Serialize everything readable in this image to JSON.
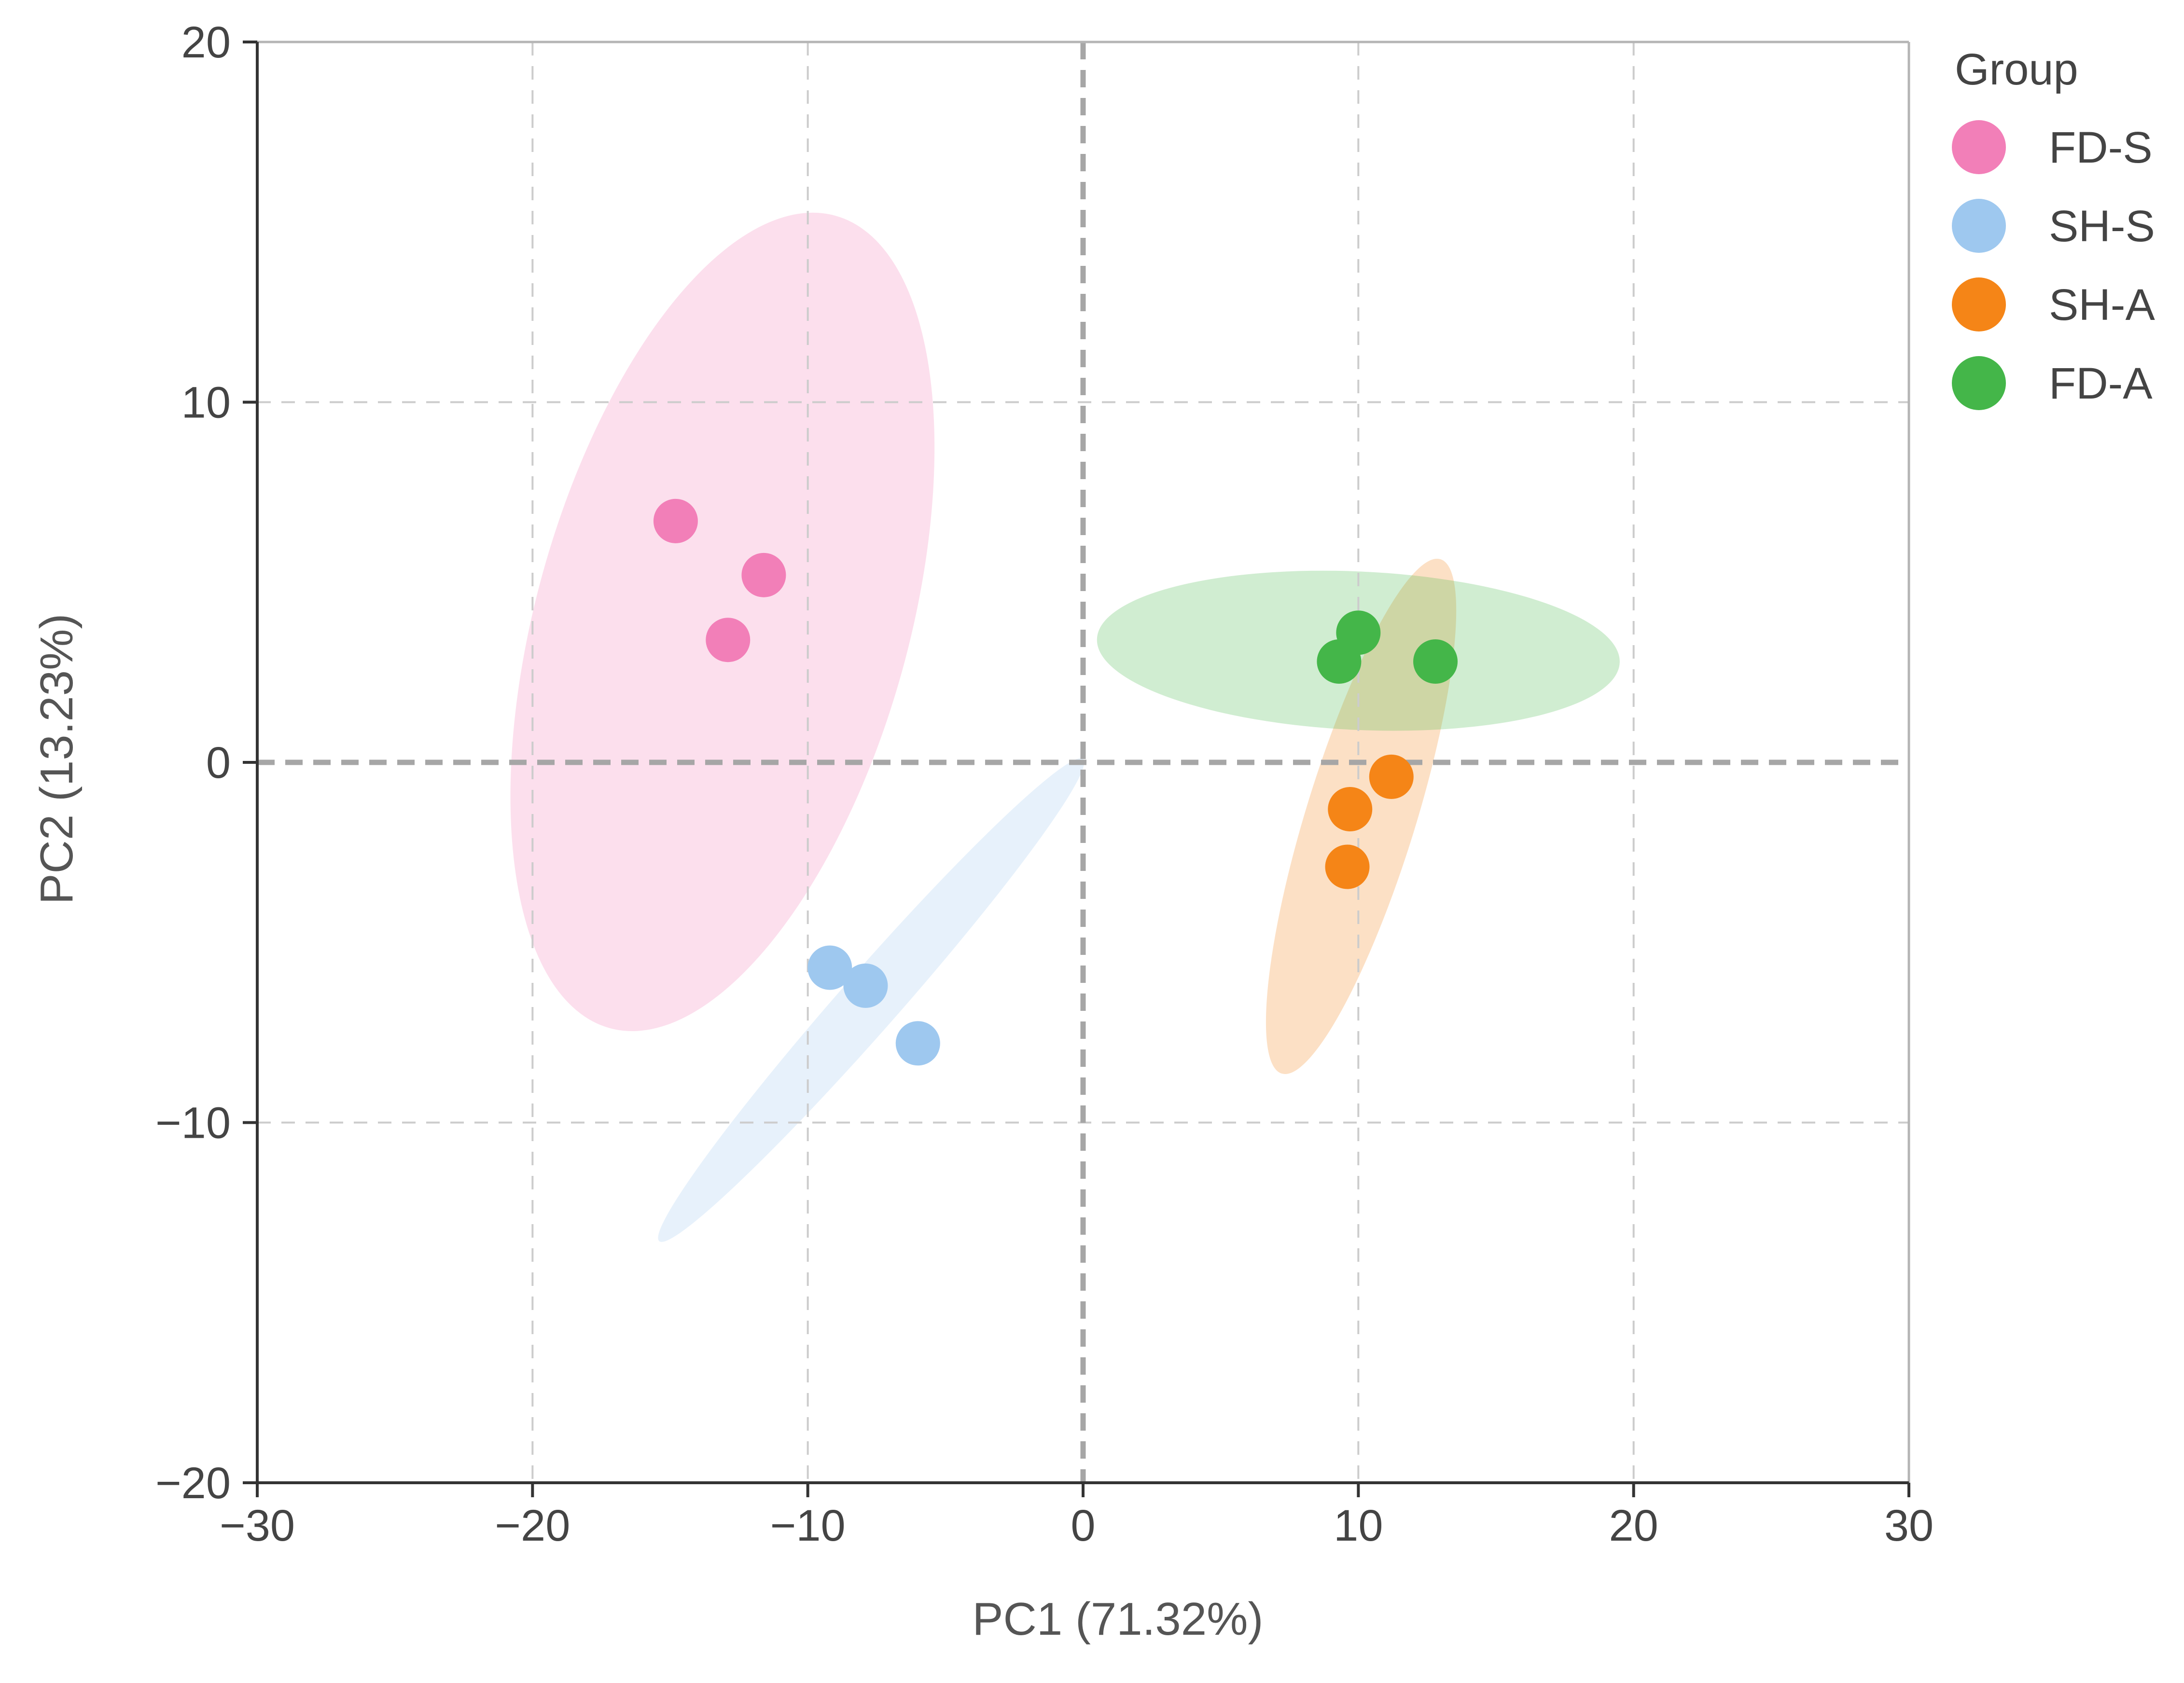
{
  "chart_data": {
    "type": "scatter",
    "title": "",
    "xlabel": "PC1 (71.32%)",
    "ylabel": "PC2 (13.23%)",
    "xlim": [
      -30,
      30
    ],
    "ylim": [
      -20,
      20
    ],
    "xticks": [
      -30,
      -20,
      -10,
      0,
      10,
      20,
      30
    ],
    "yticks": [
      -20,
      -10,
      0,
      10,
      20
    ],
    "xtick_labels": [
      "−30",
      "−20",
      "−10",
      "0",
      "10",
      "20",
      "30"
    ],
    "ytick_labels": [
      "−20",
      "−10",
      "0",
      "10",
      "20"
    ],
    "grid": true,
    "legend": {
      "title": "Group",
      "placement": "right"
    },
    "series": [
      {
        "name": "FD-S",
        "color": "#f27fb8",
        "points": [
          [
            -14.8,
            6.7
          ],
          [
            -11.6,
            5.2
          ],
          [
            -12.9,
            3.4
          ]
        ],
        "ellipse": {
          "center": [
            -13.1,
            3.9
          ],
          "semi_axes": [
            12.0,
            6.5
          ],
          "angle_deg": 70
        }
      },
      {
        "name": "SH-S",
        "color": "#9ec8ef",
        "points": [
          [
            -9.2,
            -5.7
          ],
          [
            -7.9,
            -6.2
          ],
          [
            -6.0,
            -7.8
          ]
        ],
        "ellipse": {
          "center": [
            -7.7,
            -6.6
          ],
          "semi_axes": [
            10.2,
            0.9
          ],
          "angle_deg": 41
        }
      },
      {
        "name": "SH-A",
        "color": "#f58517",
        "points": [
          [
            11.2,
            -0.4
          ],
          [
            9.7,
            -1.3
          ],
          [
            9.6,
            -2.9
          ]
        ],
        "ellipse": {
          "center": [
            10.1,
            -1.5
          ],
          "semi_axes": [
            7.7,
            1.9
          ],
          "angle_deg": 68
        }
      },
      {
        "name": "FD-A",
        "color": "#44b649",
        "points": [
          [
            10.0,
            3.6
          ],
          [
            9.3,
            2.8
          ],
          [
            12.8,
            2.8
          ]
        ],
        "ellipse": {
          "center": [
            10.0,
            3.1
          ],
          "semi_axes": [
            9.5,
            2.2
          ],
          "angle_deg": -2
        }
      }
    ]
  }
}
